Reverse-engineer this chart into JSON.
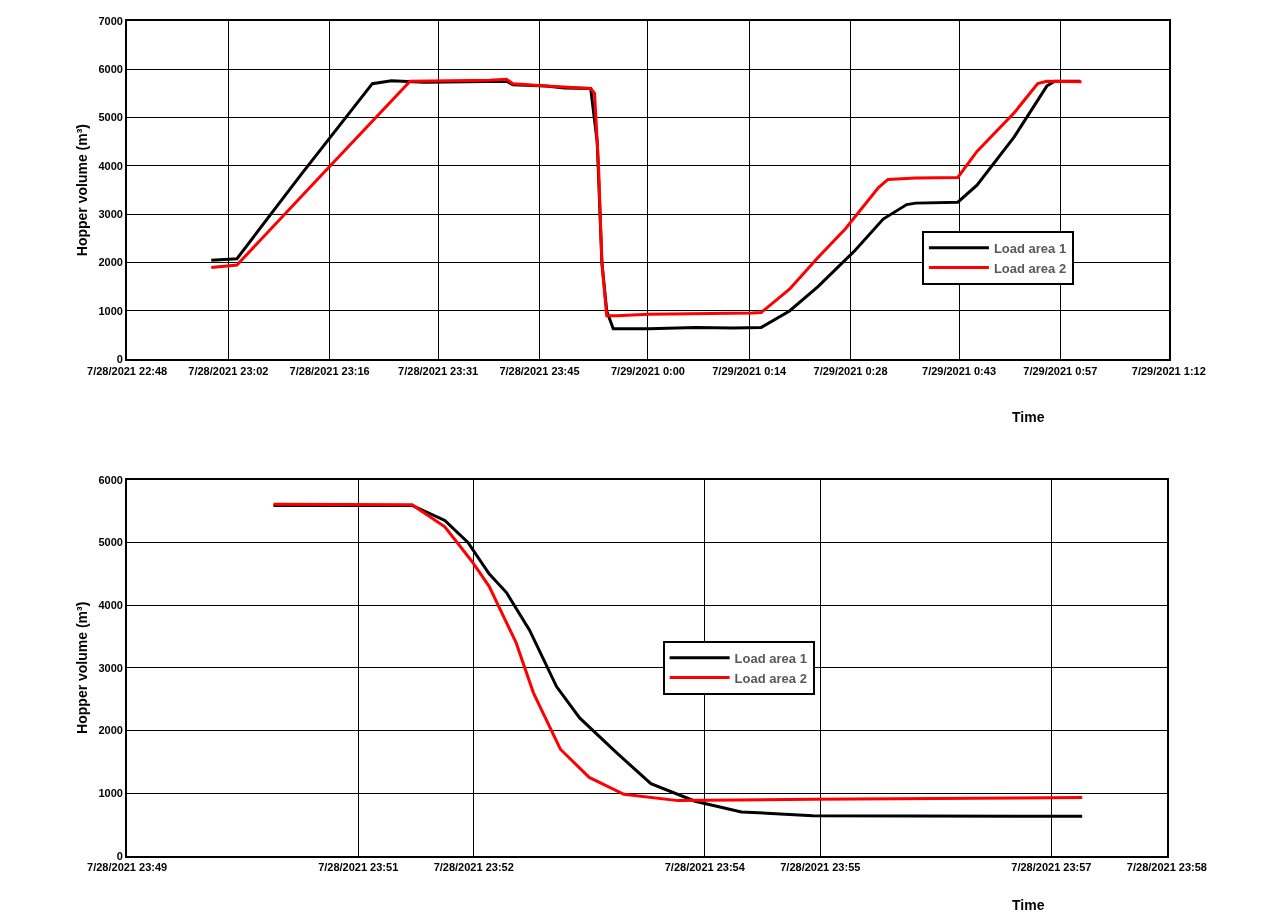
{
  "chart_data": [
    {
      "type": "line",
      "xlabel": "Time",
      "ylabel": "Hopper volume (m³)",
      "xlim": [
        "2021-07-28T22:48",
        "2021-07-29T01:12"
      ],
      "xticks": [
        {
          "value": "2021-07-28T22:48",
          "label": "7/28/2021 22:48"
        },
        {
          "value": "2021-07-28T23:02",
          "label": "7/28/2021 23:02"
        },
        {
          "value": "2021-07-28T23:16",
          "label": "7/28/2021 23:16"
        },
        {
          "value": "2021-07-28T23:31",
          "label": "7/28/2021 23:31"
        },
        {
          "value": "2021-07-28T23:45",
          "label": "7/28/2021 23:45"
        },
        {
          "value": "2021-07-29T00:00",
          "label": "7/29/2021 0:00"
        },
        {
          "value": "2021-07-29T00:14",
          "label": "7/29/2021 0:14"
        },
        {
          "value": "2021-07-29T00:28",
          "label": "7/29/2021 0:28"
        },
        {
          "value": "2021-07-29T00:43",
          "label": "7/29/2021 0:43"
        },
        {
          "value": "2021-07-29T00:57",
          "label": "7/29/2021 0:57"
        },
        {
          "value": "2021-07-29T01:12",
          "label": "7/29/2021 1:12"
        }
      ],
      "ylim": [
        0,
        7000
      ],
      "yticks": [
        0,
        1000,
        2000,
        3000,
        4000,
        5000,
        6000,
        7000
      ],
      "grid": true,
      "legend": "right",
      "line_style": "solid",
      "marker": "none",
      "series": [
        {
          "name": "Load area 1",
          "color": "#000000",
          "x": [
            "2021-07-28T22:59:38",
            "2021-07-28T23:03:11",
            "2021-07-28T23:11:56",
            "2021-07-28T23:21:54",
            "2021-07-28T23:24:32",
            "2021-07-28T23:29:02",
            "2021-07-28T23:40:26",
            "2021-07-28T23:41:20",
            "2021-07-28T23:45:54",
            "2021-07-28T23:48:29",
            "2021-07-28T23:52:05",
            "2021-07-28T23:52:59",
            "2021-07-28T23:53:38",
            "2021-07-28T23:54:18",
            "2021-07-28T23:55:12",
            "2021-07-29T00:00:07",
            "2021-07-29T00:06:36",
            "2021-07-29T00:11:46",
            "2021-07-29T00:15:40",
            "2021-07-29T00:19:34",
            "2021-07-29T00:23:28",
            "2021-07-29T00:28:37",
            "2021-07-29T00:32:31",
            "2021-07-29T00:35:46",
            "2021-07-29T00:37:01",
            "2021-07-29T00:42:50",
            "2021-07-29T00:45:29",
            "2021-07-29T00:50:38",
            "2021-07-29T00:55:08",
            "2021-07-29T00:56:13",
            "2021-07-29T00:59:42"
          ],
          "values": [
            2050,
            2080,
            3800,
            5700,
            5760,
            5730,
            5750,
            5680,
            5650,
            5610,
            5600,
            4500,
            2000,
            1000,
            630,
            630,
            660,
            650,
            660,
            1000,
            1500,
            2250,
            2900,
            3200,
            3230,
            3250,
            3600,
            4600,
            5650,
            5750,
            5750
          ]
        },
        {
          "name": "Load area 2",
          "color": "#ff0000",
          "x": [
            "2021-07-28T22:59:38",
            "2021-07-28T23:03:11",
            "2021-07-28T23:14:49",
            "2021-07-28T23:27:07",
            "2021-07-28T23:38:06",
            "2021-07-28T23:40:26",
            "2021-07-28T23:41:20",
            "2021-07-28T23:45:54",
            "2021-07-28T23:52:05",
            "2021-07-28T23:52:37",
            "2021-07-28T23:53:10",
            "2021-07-28T23:53:38",
            "2021-07-28T23:54:18",
            "2021-07-28T23:55:37",
            "2021-07-29T00:00:07",
            "2021-07-29T00:14:24",
            "2021-07-29T00:15:40",
            "2021-07-29T00:19:34",
            "2021-07-29T00:23:28",
            "2021-07-29T00:27:18",
            "2021-07-29T00:31:52",
            "2021-07-29T00:33:11",
            "2021-07-29T00:37:01",
            "2021-07-29T00:42:50",
            "2021-07-29T00:45:29",
            "2021-07-29T00:50:38",
            "2021-07-29T00:53:53",
            "2021-07-29T00:55:08",
            "2021-07-29T00:59:56"
          ],
          "values": [
            1900,
            1950,
            3800,
            5750,
            5770,
            5790,
            5700,
            5650,
            5600,
            5500,
            4000,
            2000,
            900,
            900,
            930,
            960,
            970,
            1450,
            2100,
            2700,
            3550,
            3720,
            3750,
            3760,
            4300,
            5100,
            5700,
            5750,
            5740
          ]
        }
      ]
    },
    {
      "type": "line",
      "xlabel": "Time",
      "ylabel": "Hopper volume (m³)",
      "xlim": [
        "2021-07-28T23:49",
        "2021-07-28T23:58"
      ],
      "xticks": [
        {
          "value": "2021-07-28T23:49",
          "label": "7/28/2021 23:49"
        },
        {
          "value": "2021-07-28T23:51",
          "label": "7/28/2021 23:51"
        },
        {
          "value": "2021-07-28T23:52",
          "label": "7/28/2021 23:52"
        },
        {
          "value": "2021-07-28T23:54",
          "label": "7/28/2021 23:54"
        },
        {
          "value": "2021-07-28T23:55",
          "label": "7/28/2021 23:55"
        },
        {
          "value": "2021-07-28T23:57",
          "label": "7/28/2021 23:57"
        },
        {
          "value": "2021-07-28T23:58",
          "label": "7/28/2021 23:58"
        }
      ],
      "ylim": [
        0,
        6000
      ],
      "yticks": [
        0,
        1000,
        2000,
        3000,
        4000,
        5000,
        6000
      ],
      "grid": true,
      "legend": "center",
      "line_style": "solid",
      "marker": "none",
      "series": [
        {
          "name": "Load area 1",
          "color": "#000000",
          "x": [
            "2021-07-28T23:50:16",
            "2021-07-28T23:51:28",
            "2021-07-28T23:51:45",
            "2021-07-28T23:51:57",
            "2021-07-28T23:52:08",
            "2021-07-28T23:52:17",
            "2021-07-28T23:52:29",
            "2021-07-28T23:52:43",
            "2021-07-28T23:52:55",
            "2021-07-28T23:53:14",
            "2021-07-28T23:53:32",
            "2021-07-28T23:53:55",
            "2021-07-28T23:54:19",
            "2021-07-28T23:54:56",
            "2021-07-28T23:57:16"
          ],
          "values": [
            5590,
            5590,
            5350,
            5000,
            4500,
            4200,
            3600,
            2700,
            2200,
            1650,
            1150,
            870,
            700,
            640,
            630
          ]
        },
        {
          "name": "Load area 2",
          "color": "#ff0000",
          "x": [
            "2021-07-28T23:50:16",
            "2021-07-28T23:51:28",
            "2021-07-28T23:51:45",
            "2021-07-28T23:51:59",
            "2021-07-28T23:52:08",
            "2021-07-28T23:52:22",
            "2021-07-28T23:52:31",
            "2021-07-28T23:52:45",
            "2021-07-28T23:53:00",
            "2021-07-28T23:53:18",
            "2021-07-28T23:53:46",
            "2021-07-28T23:54:56",
            "2021-07-28T23:57:16"
          ],
          "values": [
            5610,
            5600,
            5250,
            4700,
            4300,
            3400,
            2600,
            1700,
            1250,
            980,
            880,
            900,
            930
          ]
        }
      ]
    }
  ]
}
